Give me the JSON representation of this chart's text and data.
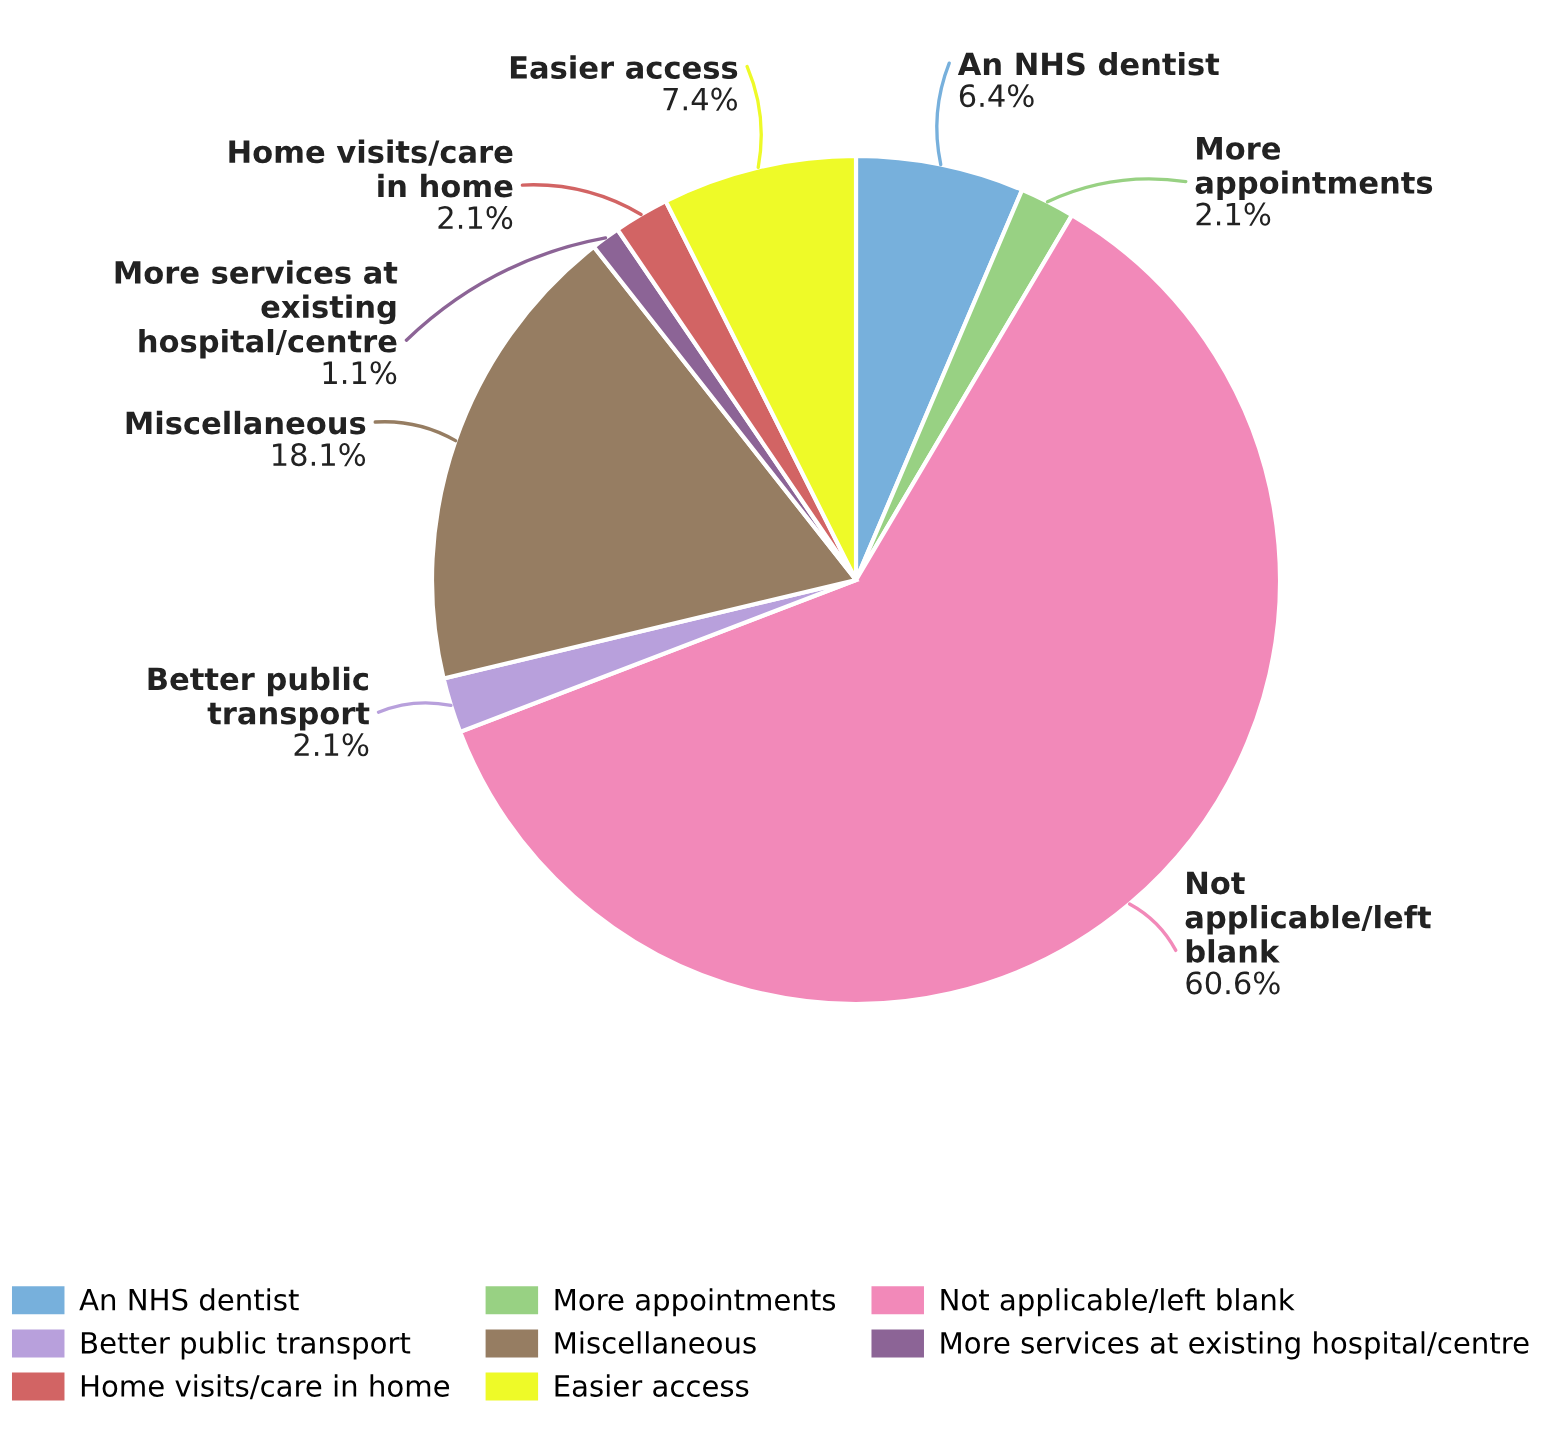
{
  "chart_data": {
    "type": "pie",
    "categories": [
      "An NHS dentist",
      "More appointments",
      "Not applicable/left blank",
      "Better public transport",
      "Miscellaneous",
      "More services at existing hospital/centre",
      "Home visits/care in home",
      "Easier access"
    ],
    "values": [
      6.4,
      2.1,
      60.6,
      2.1,
      18.1,
      1.1,
      2.1,
      7.4
    ],
    "colors": [
      "#77b0dc",
      "#98d183",
      "#f289b9",
      "#b8a0dc",
      "#967d62",
      "#8c6496",
      "#d26464",
      "#eefa28"
    ],
    "value_labels": [
      "6.4%",
      "2.1%",
      "60.6%",
      "2.1%",
      "18.1%",
      "1.1%",
      "2.1%",
      "7.4%"
    ],
    "legend": "bottom"
  }
}
